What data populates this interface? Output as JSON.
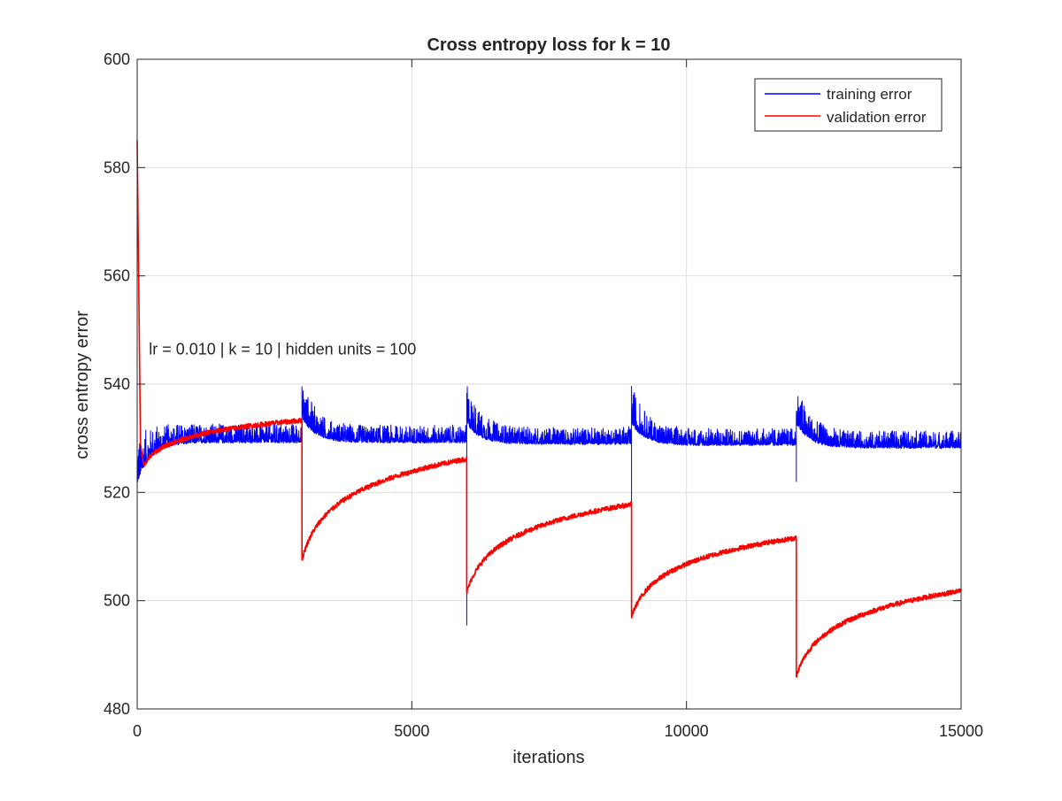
{
  "chart_data": {
    "type": "line",
    "title": "Cross entropy loss for k = 10",
    "xlabel": "iterations",
    "ylabel": "cross entropy error",
    "xlim": [
      0,
      15000
    ],
    "ylim": [
      480,
      600
    ],
    "xticks": [
      0,
      5000,
      10000,
      15000
    ],
    "yticks": [
      480,
      500,
      520,
      540,
      560,
      580,
      600
    ],
    "grid": true,
    "legend_position": "top-right",
    "annotation": {
      "text": "lr = 0.010 | k = 10 | hidden units = 100",
      "x": 100,
      "y": 544.5
    },
    "restart_points": [
      0,
      3000,
      6000,
      9000,
      12000
    ],
    "series": [
      {
        "name": "training error",
        "color": "#0000ff",
        "segments": [
          {
            "x_start": 0,
            "x_end": 3000,
            "start_value": 522,
            "plateau_value": 529.5,
            "noise_amplitude": 3.5
          },
          {
            "x_start": 3000,
            "x_end": 6000,
            "start_value": 534,
            "plateau_value": 529.5,
            "noise_amplitude": 3.0
          },
          {
            "x_start": 6000,
            "x_end": 9000,
            "start_value": 533,
            "plateau_value": 529.2,
            "noise_amplitude": 3.0
          },
          {
            "x_start": 9000,
            "x_end": 12000,
            "start_value": 533,
            "plateau_value": 529.0,
            "noise_amplitude": 3.0
          },
          {
            "x_start": 12000,
            "x_end": 15000,
            "start_value": 533,
            "plateau_value": 528.5,
            "noise_amplitude": 3.0
          }
        ],
        "drop_min_values": [
          null,
          null,
          495.5,
          500,
          522
        ]
      },
      {
        "name": "validation error",
        "color": "#ff0000",
        "segments": [
          {
            "x_start": 0,
            "x_end": 3000,
            "spike_value": 585,
            "start_value": 525,
            "end_value": 533.3
          },
          {
            "x_start": 3000,
            "x_end": 6000,
            "start_value": 507.5,
            "end_value": 526.2
          },
          {
            "x_start": 6000,
            "x_end": 9000,
            "start_value": 501.5,
            "end_value": 517.8
          },
          {
            "x_start": 9000,
            "x_end": 12000,
            "start_value": 497,
            "end_value": 511.6
          },
          {
            "x_start": 12000,
            "x_end": 15000,
            "start_value": 486,
            "end_value": 501.8
          }
        ]
      }
    ]
  }
}
